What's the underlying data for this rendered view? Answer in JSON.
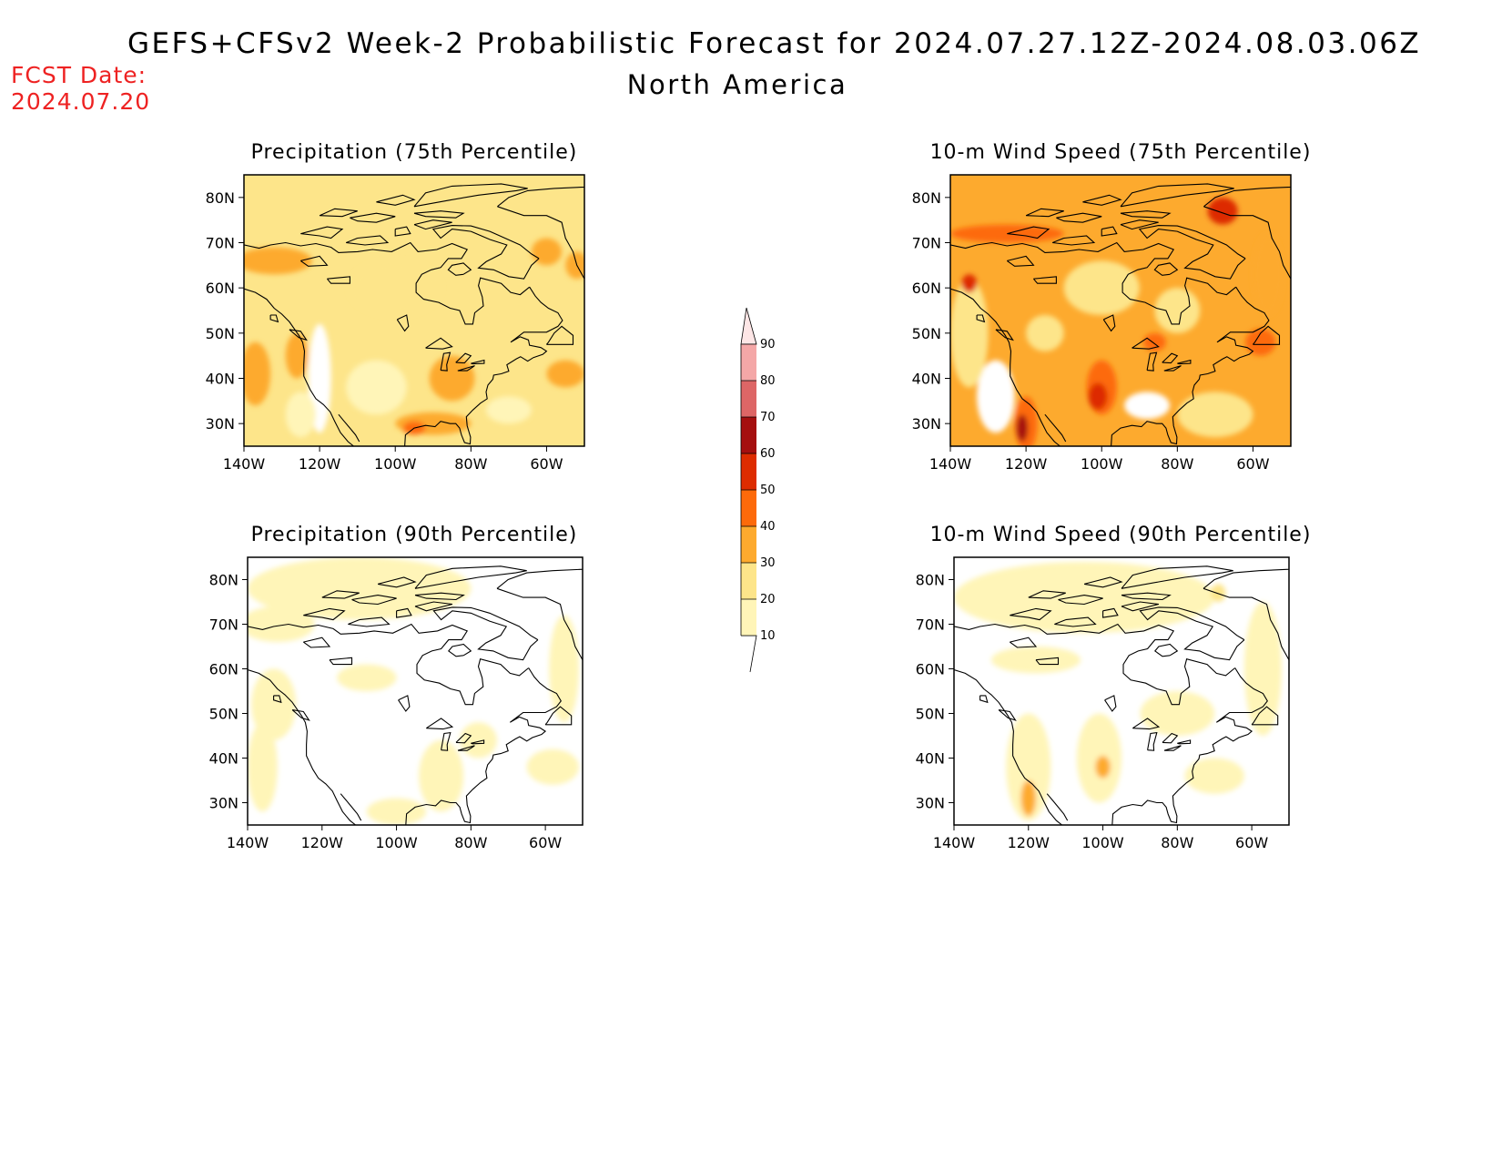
{
  "header": {
    "title": "GEFS+CFSv2 Week-2 Probabilistic Forecast for 2024.07.27.12Z-2024.08.03.06Z",
    "subtitle": "North America",
    "fcst_label": "FCST Date:",
    "fcst_date": "2024.07.20"
  },
  "axes": {
    "lat_ticks": [
      80,
      70,
      60,
      50,
      40,
      30
    ],
    "lat_labels": [
      "80N",
      "70N",
      "60N",
      "50N",
      "40N",
      "30N"
    ],
    "lon_ticks": [
      -140,
      -120,
      -100,
      -80,
      -60
    ],
    "lon_labels": [
      "140W",
      "120W",
      "100W",
      "80W",
      "60W"
    ],
    "lon_range": [
      -140,
      -50
    ],
    "lat_range": [
      25,
      85
    ]
  },
  "panels": [
    {
      "id": "precip75",
      "title": "Precipitation (75th Percentile)",
      "base_color": "#fde58a",
      "blobs": [
        {
          "lon": -132,
          "lat": 66,
          "rx": 10,
          "ry": 3,
          "c": "#fdaa2e"
        },
        {
          "lon": -137,
          "lat": 41,
          "rx": 4,
          "ry": 7,
          "c": "#fdaa2e"
        },
        {
          "lon": -126,
          "lat": 45,
          "rx": 3,
          "ry": 5,
          "c": "#fdaa2e"
        },
        {
          "lon": -85,
          "lat": 40,
          "rx": 6,
          "ry": 5,
          "c": "#fdaa2e"
        },
        {
          "lon": -90,
          "lat": 30,
          "rx": 10,
          "ry": 2.5,
          "c": "#fdaa2e"
        },
        {
          "lon": -95,
          "lat": 29,
          "rx": 3,
          "ry": 1.5,
          "c": "#fd6a0a"
        },
        {
          "lon": -55,
          "lat": 41,
          "rx": 5,
          "ry": 3,
          "c": "#fdaa2e"
        },
        {
          "lon": -60,
          "lat": 68,
          "rx": 4,
          "ry": 3,
          "c": "#fdaa2e"
        },
        {
          "lon": -52,
          "lat": 65,
          "rx": 3,
          "ry": 3,
          "c": "#fdaa2e"
        },
        {
          "lon": -120,
          "lat": 40,
          "rx": 3,
          "ry": 12,
          "c": "#ffffff"
        },
        {
          "lon": -105,
          "lat": 38,
          "rx": 8,
          "ry": 6,
          "c": "#fff5b8"
        },
        {
          "lon": -125,
          "lat": 32,
          "rx": 4,
          "ry": 5,
          "c": "#fff5b8"
        },
        {
          "lon": -100,
          "lat": 60,
          "rx": 12,
          "ry": 6,
          "c": "#fde58a"
        },
        {
          "lon": -70,
          "lat": 33,
          "rx": 6,
          "ry": 3,
          "c": "#fff5b8"
        }
      ]
    },
    {
      "id": "wind75",
      "title": "10-m Wind Speed (75th Percentile)",
      "base_color": "#fdaa2e",
      "blobs": [
        {
          "lon": -128,
          "lat": 36,
          "rx": 5,
          "ry": 8,
          "c": "#ffffff"
        },
        {
          "lon": -135,
          "lat": 50,
          "rx": 5,
          "ry": 12,
          "c": "#fde58a"
        },
        {
          "lon": -70,
          "lat": 32,
          "rx": 10,
          "ry": 5,
          "c": "#fde58a"
        },
        {
          "lon": -88,
          "lat": 34,
          "rx": 6,
          "ry": 3,
          "c": "#ffffff"
        },
        {
          "lon": -100,
          "lat": 60,
          "rx": 10,
          "ry": 6,
          "c": "#fde58a"
        },
        {
          "lon": -80,
          "lat": 55,
          "rx": 6,
          "ry": 5,
          "c": "#fde58a"
        },
        {
          "lon": -115,
          "lat": 50,
          "rx": 5,
          "ry": 4,
          "c": "#fde58a"
        },
        {
          "lon": -120,
          "lat": 30,
          "rx": 3,
          "ry": 6,
          "c": "#fd6a0a"
        },
        {
          "lon": -121,
          "lat": 29,
          "rx": 1.5,
          "ry": 3,
          "c": "#a50f0f"
        },
        {
          "lon": -100,
          "lat": 38,
          "rx": 4,
          "ry": 6,
          "c": "#fd6a0a"
        },
        {
          "lon": -101,
          "lat": 36,
          "rx": 2.5,
          "ry": 3,
          "c": "#dd2c00"
        },
        {
          "lon": -125,
          "lat": 72,
          "rx": 15,
          "ry": 2,
          "c": "#fd6a0a"
        },
        {
          "lon": -68,
          "lat": 77,
          "rx": 4,
          "ry": 3,
          "c": "#dd2c00"
        },
        {
          "lon": -56,
          "lat": 63,
          "rx": 4,
          "ry": 9,
          "c": "#fdaa2e"
        },
        {
          "lon": -58,
          "lat": 48,
          "rx": 4,
          "ry": 3,
          "c": "#fd6a0a"
        },
        {
          "lon": -86,
          "lat": 48,
          "rx": 3,
          "ry": 2,
          "c": "#fd6a0a"
        },
        {
          "lon": -135,
          "lat": 61,
          "rx": 2,
          "ry": 2,
          "c": "#dd2c00"
        }
      ]
    },
    {
      "id": "precip90",
      "title": "Precipitation (90th Percentile)",
      "base_color": "#ffffff",
      "blobs": [
        {
          "lon": -110,
          "lat": 78,
          "rx": 30,
          "ry": 7,
          "c": "#fff5b8"
        },
        {
          "lon": -132,
          "lat": 70,
          "rx": 10,
          "ry": 4,
          "c": "#fff5b8"
        },
        {
          "lon": -133,
          "lat": 52,
          "rx": 6,
          "ry": 8,
          "c": "#fff5b8"
        },
        {
          "lon": -136,
          "lat": 38,
          "rx": 4,
          "ry": 10,
          "c": "#fff5b8"
        },
        {
          "lon": -88,
          "lat": 36,
          "rx": 6,
          "ry": 8,
          "c": "#fff5b8"
        },
        {
          "lon": -78,
          "lat": 44,
          "rx": 5,
          "ry": 4,
          "c": "#fff5b8"
        },
        {
          "lon": -58,
          "lat": 38,
          "rx": 7,
          "ry": 4,
          "c": "#fff5b8"
        },
        {
          "lon": -55,
          "lat": 60,
          "rx": 4,
          "ry": 12,
          "c": "#fff5b8"
        },
        {
          "lon": -108,
          "lat": 58,
          "rx": 8,
          "ry": 3,
          "c": "#fff5b8"
        },
        {
          "lon": -100,
          "lat": 28,
          "rx": 8,
          "ry": 3,
          "c": "#fff5b8"
        }
      ]
    },
    {
      "id": "wind90",
      "title": "10-m Wind Speed (90th Percentile)",
      "base_color": "#ffffff",
      "blobs": [
        {
          "lon": -105,
          "lat": 76,
          "rx": 35,
          "ry": 8,
          "c": "#fff5b8"
        },
        {
          "lon": -118,
          "lat": 62,
          "rx": 12,
          "ry": 3,
          "c": "#fff5b8"
        },
        {
          "lon": -120,
          "lat": 38,
          "rx": 6,
          "ry": 12,
          "c": "#fff5b8"
        },
        {
          "lon": -101,
          "lat": 40,
          "rx": 6,
          "ry": 10,
          "c": "#fff5b8"
        },
        {
          "lon": -80,
          "lat": 50,
          "rx": 10,
          "ry": 5,
          "c": "#fff5b8"
        },
        {
          "lon": -57,
          "lat": 60,
          "rx": 5,
          "ry": 15,
          "c": "#fff5b8"
        },
        {
          "lon": -70,
          "lat": 36,
          "rx": 8,
          "ry": 4,
          "c": "#fff5b8"
        },
        {
          "lon": -120,
          "lat": 31,
          "rx": 2,
          "ry": 4,
          "c": "#fdaa2e"
        },
        {
          "lon": -100,
          "lat": 38,
          "rx": 2,
          "ry": 2.5,
          "c": "#fdaa2e"
        },
        {
          "lon": -69,
          "lat": 77,
          "rx": 2,
          "ry": 2,
          "c": "#fde58a"
        }
      ]
    }
  ],
  "colorbar": {
    "levels": [
      "10",
      "20",
      "30",
      "40",
      "50",
      "60",
      "70",
      "80",
      "90"
    ],
    "colors": [
      "#fff5b8",
      "#fde58a",
      "#fdaa2e",
      "#fd6a0a",
      "#dd2c00",
      "#a50f0f",
      "#dd6666",
      "#f4a7a7",
      "#fde6e6"
    ]
  }
}
